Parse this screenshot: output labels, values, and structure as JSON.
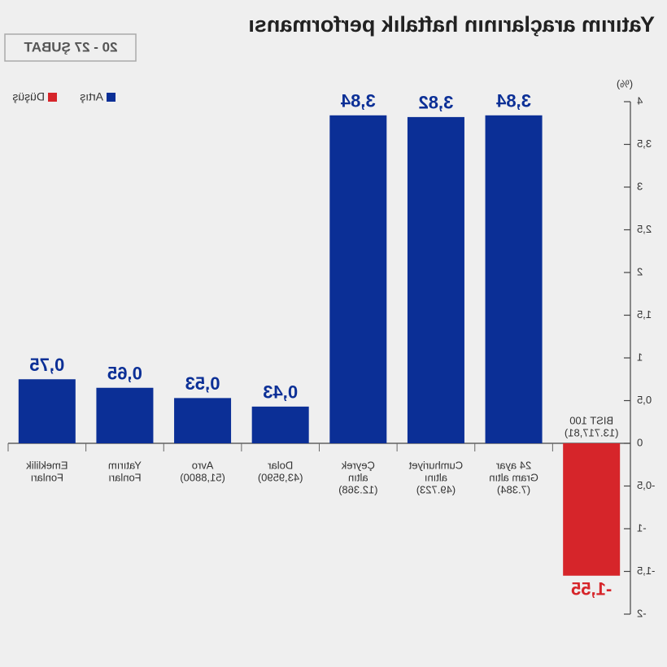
{
  "chart_data": {
    "type": "bar",
    "title": "Yatırım araçlarının haftalık performansı",
    "date_range": "20 - 27 ŞUBAT",
    "unit": "(%)",
    "legend": [
      {
        "name": "Artış",
        "color": "#0b2f96"
      },
      {
        "name": "Düşüş",
        "color": "#d6252a"
      }
    ],
    "categories": [
      [
        "BIST 100",
        "(13.717,81)"
      ],
      [
        "24 ayar",
        "Gram altın",
        "(7.384)"
      ],
      [
        "Cumhuriyet",
        "altını",
        "(49.723)"
      ],
      [
        "Çeyrek",
        "altın",
        "(12.368)"
      ],
      [
        "Dolar",
        "(43,9590)"
      ],
      [
        "Avro",
        "(51,8800)"
      ],
      [
        "Yatırım",
        "Fonları"
      ],
      [
        "Emeklilik",
        "Fonları"
      ]
    ],
    "values": [
      -1.55,
      3.84,
      3.82,
      3.84,
      0.43,
      0.53,
      0.65,
      0.75
    ],
    "value_labels": [
      "-1,55",
      "3,84",
      "3,82",
      "3,84",
      "0,43",
      "0,53",
      "0,65",
      "0,75"
    ],
    "ylim": [
      -2,
      4
    ],
    "yticks": [
      -2,
      {
        "value": -1.5,
        "label": "-1,5"
      },
      -1,
      {
        "value": -0.5,
        "label": "-0,5"
      },
      0,
      {
        "value": 0.5,
        "label": "0,5"
      },
      1,
      {
        "value": 1.5,
        "label": "1,5"
      },
      2,
      {
        "value": 2.5,
        "label": "2,5"
      },
      3,
      {
        "value": 3.5,
        "label": "3,5"
      },
      4
    ]
  }
}
